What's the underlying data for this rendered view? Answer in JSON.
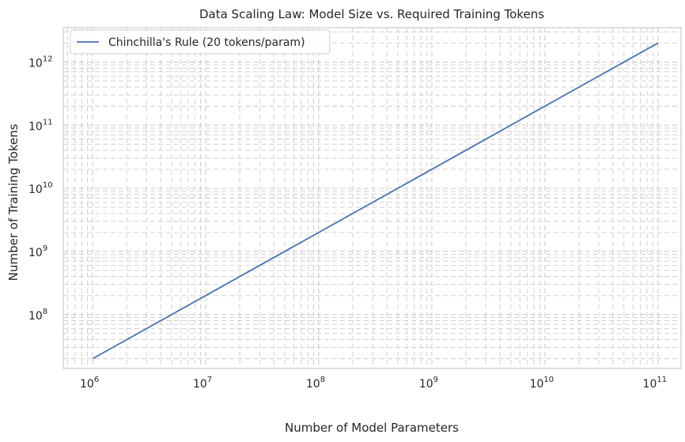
{
  "chart_data": {
    "type": "line",
    "title": "Data Scaling Law: Model Size vs. Required Training Tokens",
    "xlabel": "Number of Model Parameters",
    "ylabel": "Number of Training Tokens",
    "xscale": "log",
    "yscale": "log",
    "xlim": [
      550000,
      160000000000
    ],
    "ylim": [
      14000000,
      3500000000000
    ],
    "x_ticks": [
      {
        "base": "10",
        "exp": "6",
        "value": 1000000
      },
      {
        "base": "10",
        "exp": "7",
        "value": 10000000
      },
      {
        "base": "10",
        "exp": "8",
        "value": 100000000
      },
      {
        "base": "10",
        "exp": "9",
        "value": 1000000000
      },
      {
        "base": "10",
        "exp": "10",
        "value": 10000000000
      },
      {
        "base": "10",
        "exp": "11",
        "value": 100000000000
      }
    ],
    "y_ticks": [
      {
        "base": "10",
        "exp": "8",
        "value": 100000000
      },
      {
        "base": "10",
        "exp": "9",
        "value": 1000000000
      },
      {
        "base": "10",
        "exp": "10",
        "value": 10000000000
      },
      {
        "base": "10",
        "exp": "11",
        "value": 100000000000
      },
      {
        "base": "10",
        "exp": "12",
        "value": 1000000000000
      }
    ],
    "grid": true,
    "grid_style": "dashed, major and minor",
    "legend_position": "top-left",
    "series": [
      {
        "name": "Chinchilla's Rule (20 tokens/param)",
        "color": "#4c72b0",
        "x": [
          1000000,
          100000000000
        ],
        "y": [
          20000000,
          2000000000000
        ]
      }
    ]
  },
  "colors": {
    "line": "#4c72b0",
    "grid": "#cccccc",
    "axes": "#cccccc",
    "text": "#262626"
  }
}
